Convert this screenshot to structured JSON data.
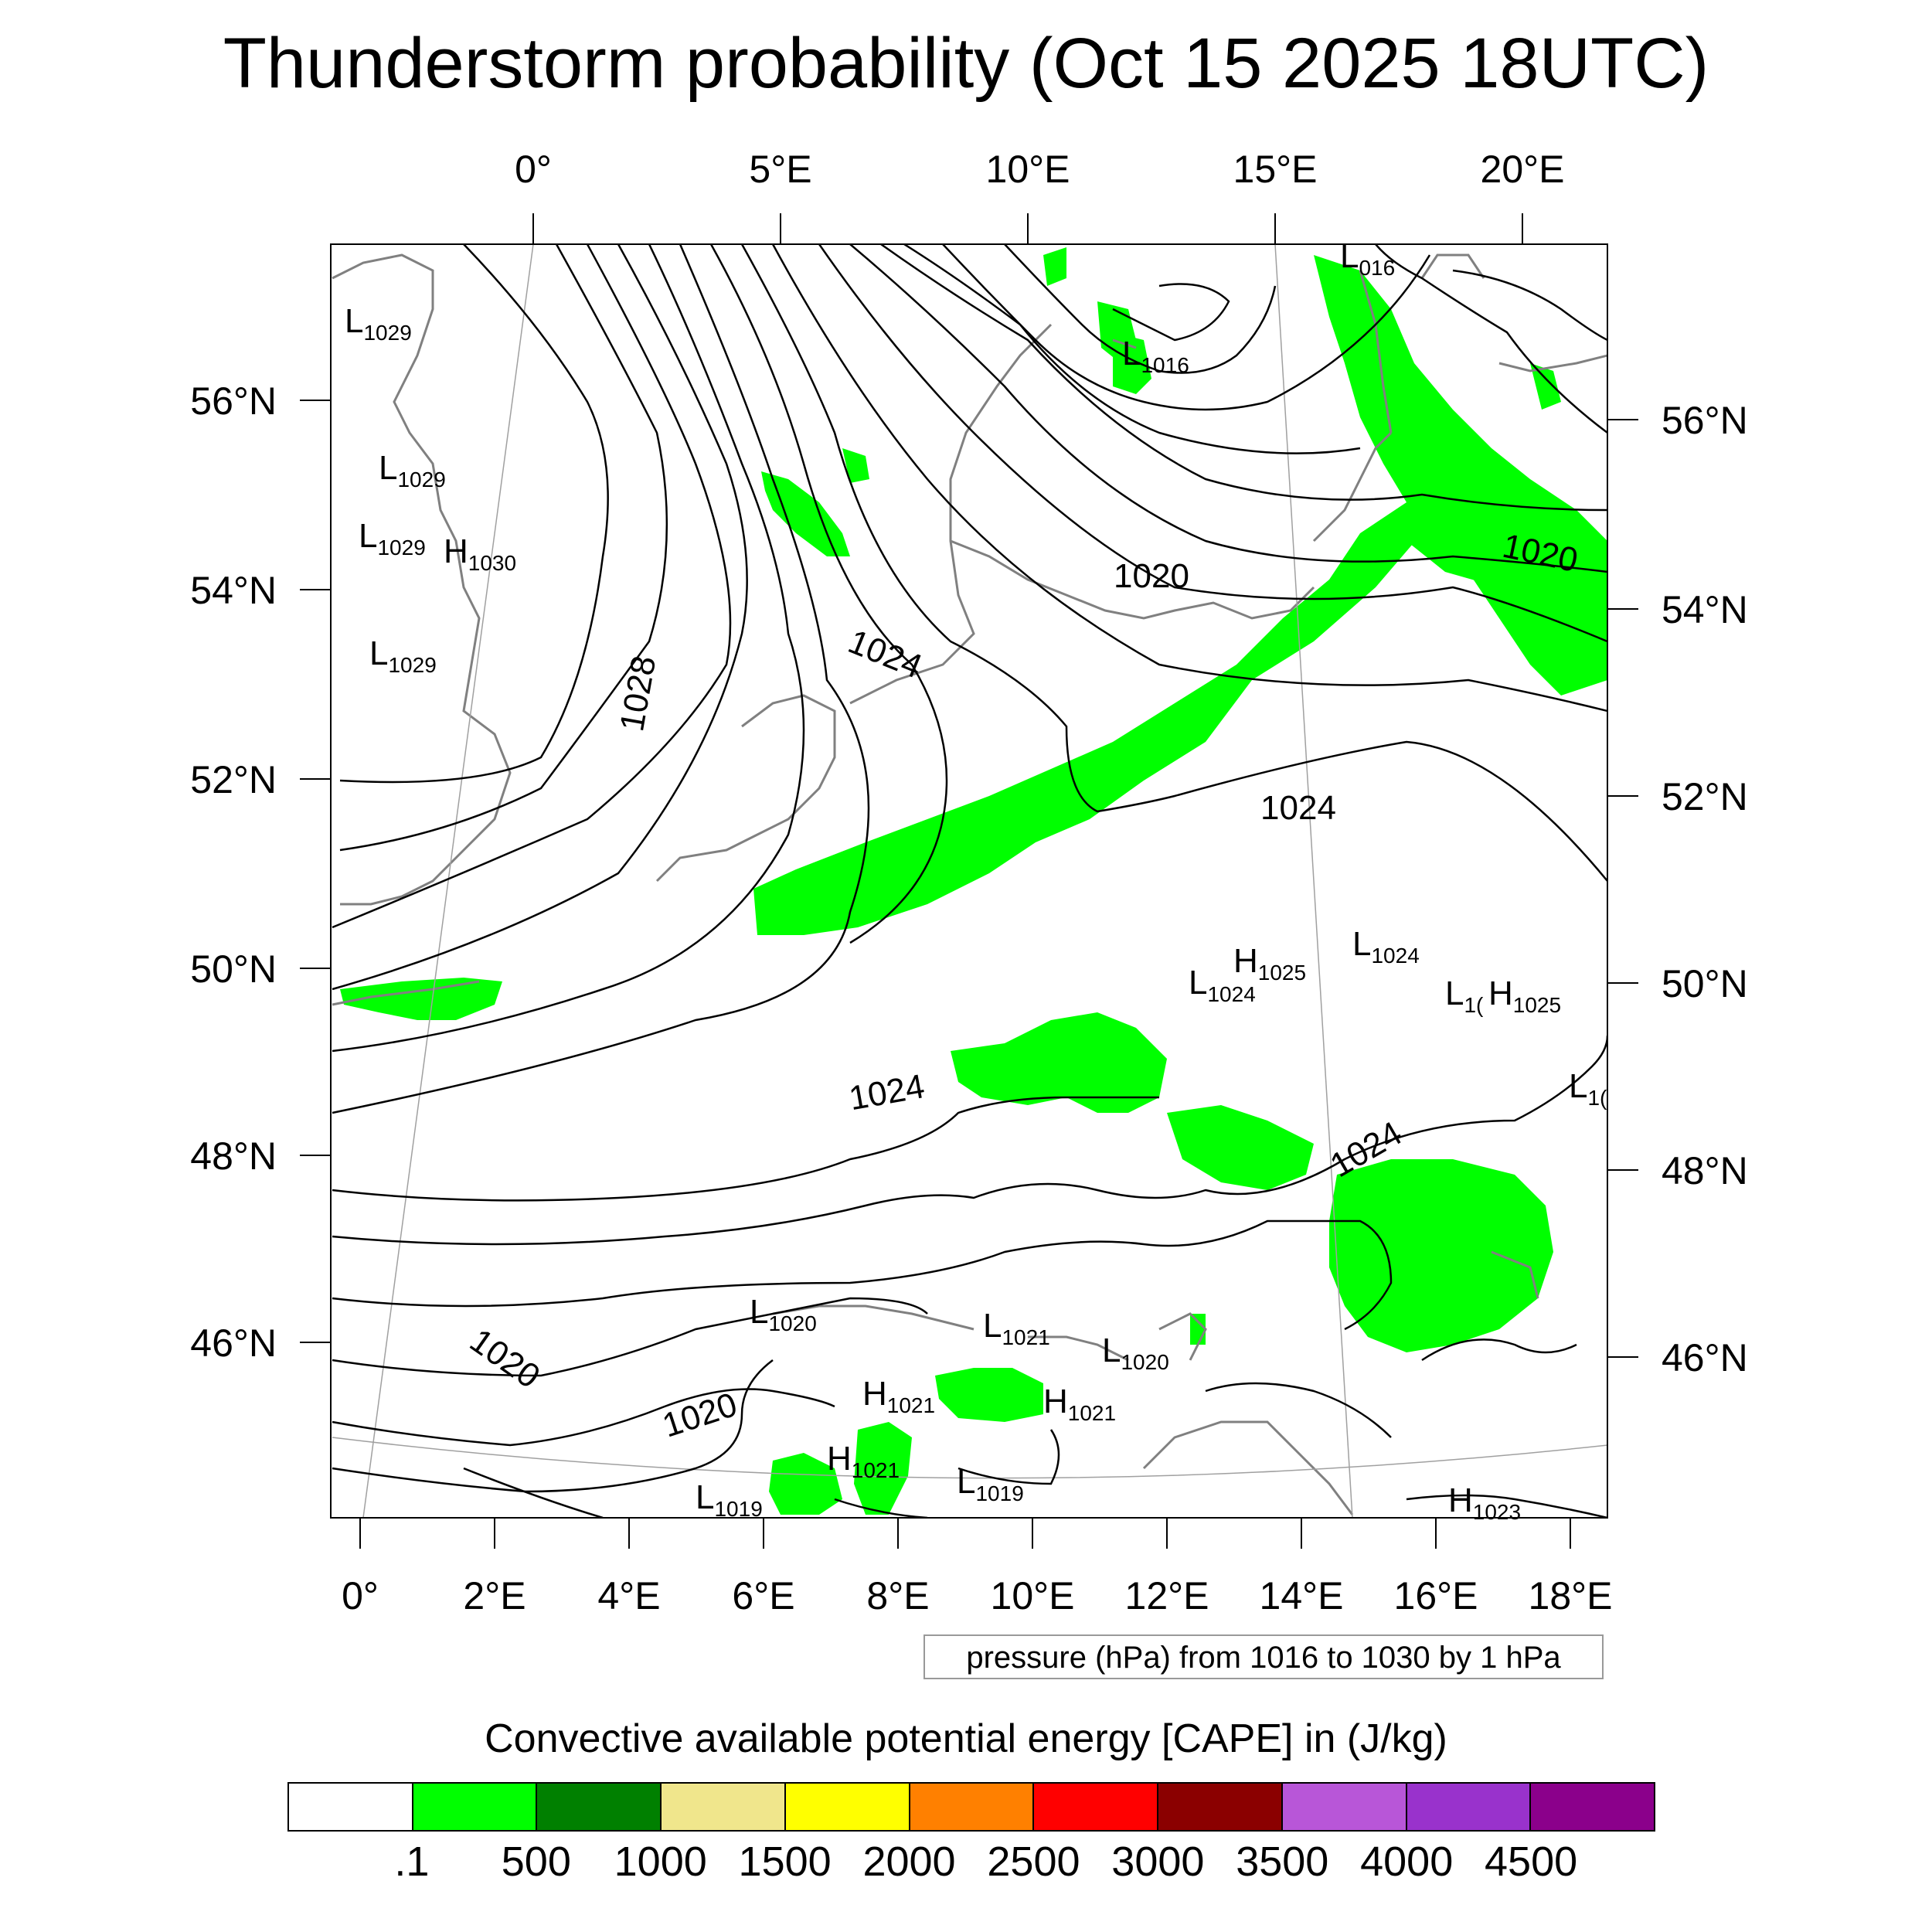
{
  "title": "Thunderstorm probability (Oct 15 2025 18UTC)",
  "top_lon_labels": [
    "0°",
    "5°E",
    "10°E",
    "15°E",
    "20°E"
  ],
  "bottom_lon_labels": [
    "0°",
    "2°E",
    "4°E",
    "6°E",
    "8°E",
    "10°E",
    "12°E",
    "14°E",
    "16°E",
    "18°E"
  ],
  "left_lat_labels": [
    "56°N",
    "54°N",
    "52°N",
    "50°N",
    "48°N",
    "46°N"
  ],
  "right_lat_labels": [
    "56°N",
    "54°N",
    "52°N",
    "50°N",
    "48°N",
    "46°N"
  ],
  "contour_labels": [
    "1020",
    "1024",
    "1028",
    "1020",
    "1024",
    "1024",
    "1024",
    "1020",
    "1020"
  ],
  "pressure_centers": [
    {
      "type": "L",
      "value": "1029"
    },
    {
      "type": "L",
      "value": "1029"
    },
    {
      "type": "L",
      "value": "1029"
    },
    {
      "type": "H",
      "value": "1030"
    },
    {
      "type": "L",
      "value": "1029"
    },
    {
      "type": "L",
      "value": "016"
    },
    {
      "type": "L",
      "value": "1016"
    },
    {
      "type": "L",
      "value": "1024"
    },
    {
      "type": "H",
      "value": "1025"
    },
    {
      "type": "L",
      "value": "1024"
    },
    {
      "type": "L",
      "value": "1("
    },
    {
      "type": "H",
      "value": "1025"
    },
    {
      "type": "L",
      "value": "1("
    },
    {
      "type": "L",
      "value": "1020"
    },
    {
      "type": "L",
      "value": "1021"
    },
    {
      "type": "L",
      "value": "1020"
    },
    {
      "type": "H",
      "value": "1021"
    },
    {
      "type": "H",
      "value": "1021"
    },
    {
      "type": "H",
      "value": "1021"
    },
    {
      "type": "L",
      "value": "1019"
    },
    {
      "type": "L",
      "value": "1019"
    },
    {
      "type": "H",
      "value": "1023"
    }
  ],
  "pressure_note": "pressure (hPa) from 1016 to 1030 by 1 hPa",
  "cape_title": "Convective available potential energy [CAPE] in (J/kg)",
  "colorbar": {
    "colors": [
      "#ffffff",
      "#00ff00",
      "#008000",
      "#f0e68c",
      "#ffff00",
      "#ff8000",
      "#ff0000",
      "#8b0000",
      "#b856d8",
      "#9932cc",
      "#8b008b"
    ],
    "labels": [
      ".1",
      "500",
      "1000",
      "1500",
      "2000",
      "2500",
      "3000",
      "3500",
      "4000",
      "4500"
    ]
  }
}
